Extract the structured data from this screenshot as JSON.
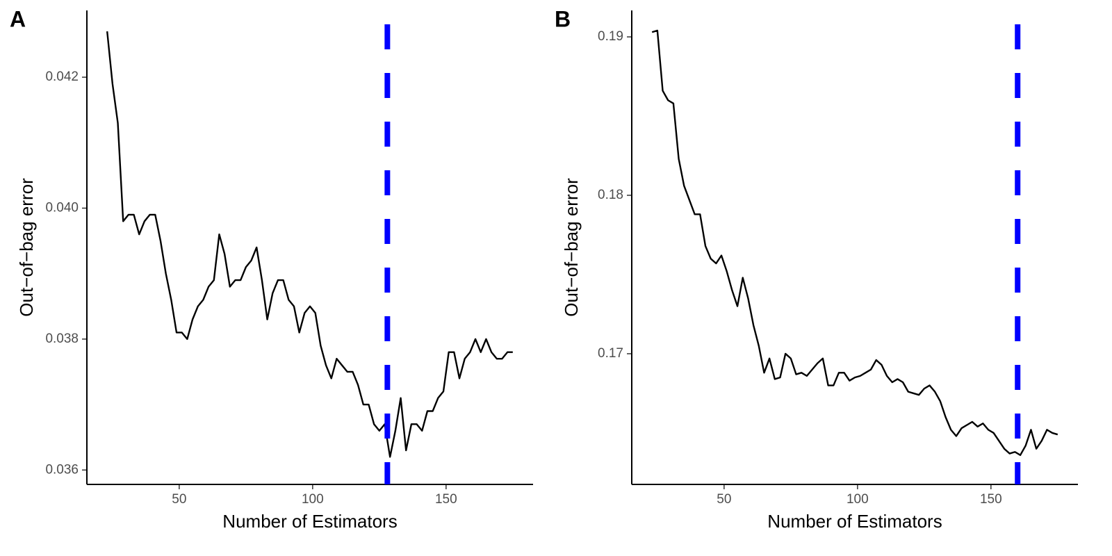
{
  "chart_data": [
    {
      "type": "line",
      "label": "A",
      "x_label": "Number of Estimators",
      "y_label": "Out−of−bag error",
      "x": [
        23,
        25,
        27,
        29,
        31,
        33,
        35,
        37,
        39,
        41,
        43,
        45,
        47,
        49,
        51,
        53,
        55,
        57,
        59,
        61,
        63,
        65,
        67,
        69,
        71,
        73,
        75,
        77,
        79,
        81,
        83,
        85,
        87,
        89,
        91,
        93,
        95,
        97,
        99,
        101,
        103,
        105,
        107,
        109,
        111,
        113,
        115,
        117,
        119,
        121,
        123,
        125,
        127,
        129,
        131,
        133,
        135,
        137,
        139,
        141,
        143,
        145,
        147,
        149,
        151,
        153,
        155,
        157,
        159,
        161,
        163,
        165,
        167,
        169,
        171,
        173,
        175
      ],
      "series": [
        {
          "color": "#000000",
          "values": [
            0.0427,
            0.0419,
            0.0413,
            0.0398,
            0.0399,
            0.0399,
            0.0396,
            0.0398,
            0.0399,
            0.0399,
            0.0395,
            0.039,
            0.0386,
            0.0381,
            0.0381,
            0.038,
            0.0383,
            0.0385,
            0.0386,
            0.0388,
            0.0389,
            0.0396,
            0.0393,
            0.0388,
            0.0389,
            0.0389,
            0.0391,
            0.0392,
            0.0394,
            0.0389,
            0.0383,
            0.0387,
            0.0389,
            0.0389,
            0.0386,
            0.0385,
            0.0381,
            0.0384,
            0.0385,
            0.0384,
            0.0379,
            0.0376,
            0.0374,
            0.0377,
            0.0376,
            0.0375,
            0.0375,
            0.0373,
            0.037,
            0.037,
            0.0367,
            0.0366,
            0.0367,
            0.0362,
            0.0366,
            0.0371,
            0.0363,
            0.0367,
            0.0367,
            0.0366,
            0.0369,
            0.0369,
            0.0371,
            0.0372,
            0.0378,
            0.0378,
            0.0374,
            0.0377,
            0.0378,
            0.038,
            0.0378,
            0.038,
            0.0378,
            0.0377,
            0.0377,
            0.0378,
            0.0378
          ]
        }
      ],
      "xlim": [
        15.4,
        182.6
      ],
      "xticks": [
        50,
        100,
        150
      ],
      "ylim": [
        0.03578,
        0.04302
      ],
      "yticks": [
        0.036,
        0.038,
        {
          "value": 0.04,
          "label": "0.040"
        },
        0.042
      ],
      "vline": {
        "x": 128,
        "color": "#0000ff"
      }
    },
    {
      "type": "line",
      "label": "B",
      "x_label": "Number of Estimators",
      "y_label": "Out−of−bag error",
      "x": [
        23,
        25,
        27,
        29,
        31,
        33,
        35,
        37,
        39,
        41,
        43,
        45,
        47,
        49,
        51,
        53,
        55,
        57,
        59,
        61,
        63,
        65,
        67,
        69,
        71,
        73,
        75,
        77,
        79,
        81,
        83,
        85,
        87,
        89,
        91,
        93,
        95,
        97,
        99,
        101,
        103,
        105,
        107,
        109,
        111,
        113,
        115,
        117,
        119,
        121,
        123,
        125,
        127,
        129,
        131,
        133,
        135,
        137,
        139,
        141,
        143,
        145,
        147,
        149,
        151,
        153,
        155,
        157,
        159,
        161,
        163,
        165,
        167,
        169,
        171,
        173,
        175
      ],
      "series": [
        {
          "color": "#000000",
          "values": [
            0.1903,
            0.1904,
            0.1866,
            0.186,
            0.1858,
            0.1823,
            0.1806,
            0.1797,
            0.1788,
            0.1788,
            0.1768,
            0.176,
            0.1757,
            0.1762,
            0.1752,
            0.174,
            0.173,
            0.1748,
            0.1735,
            0.1718,
            0.1705,
            0.1688,
            0.1697,
            0.1684,
            0.1685,
            0.17,
            0.1697,
            0.1687,
            0.1688,
            0.1686,
            0.169,
            0.1694,
            0.1697,
            0.168,
            0.168,
            0.1688,
            0.1688,
            0.1683,
            0.1685,
            0.1686,
            0.1688,
            0.169,
            0.1696,
            0.1693,
            0.1686,
            0.1682,
            0.1684,
            0.1682,
            0.1676,
            0.1675,
            0.1674,
            0.1678,
            0.168,
            0.1676,
            0.167,
            0.166,
            0.1652,
            0.1648,
            0.1653,
            0.1655,
            0.1657,
            0.1654,
            0.1656,
            0.1652,
            0.165,
            0.1645,
            0.164,
            0.1637,
            0.1638,
            0.1636,
            0.1642,
            0.1652,
            0.164,
            0.1645,
            0.1652,
            0.165,
            0.1649
          ]
        }
      ],
      "xlim": [
        15.4,
        182.6
      ],
      "xticks": [
        50,
        100,
        150
      ],
      "ylim": [
        0.16175,
        0.19167
      ],
      "yticks": [
        0.17,
        0.18,
        0.19
      ],
      "vline": {
        "x": 160,
        "color": "#0000ff"
      }
    }
  ]
}
